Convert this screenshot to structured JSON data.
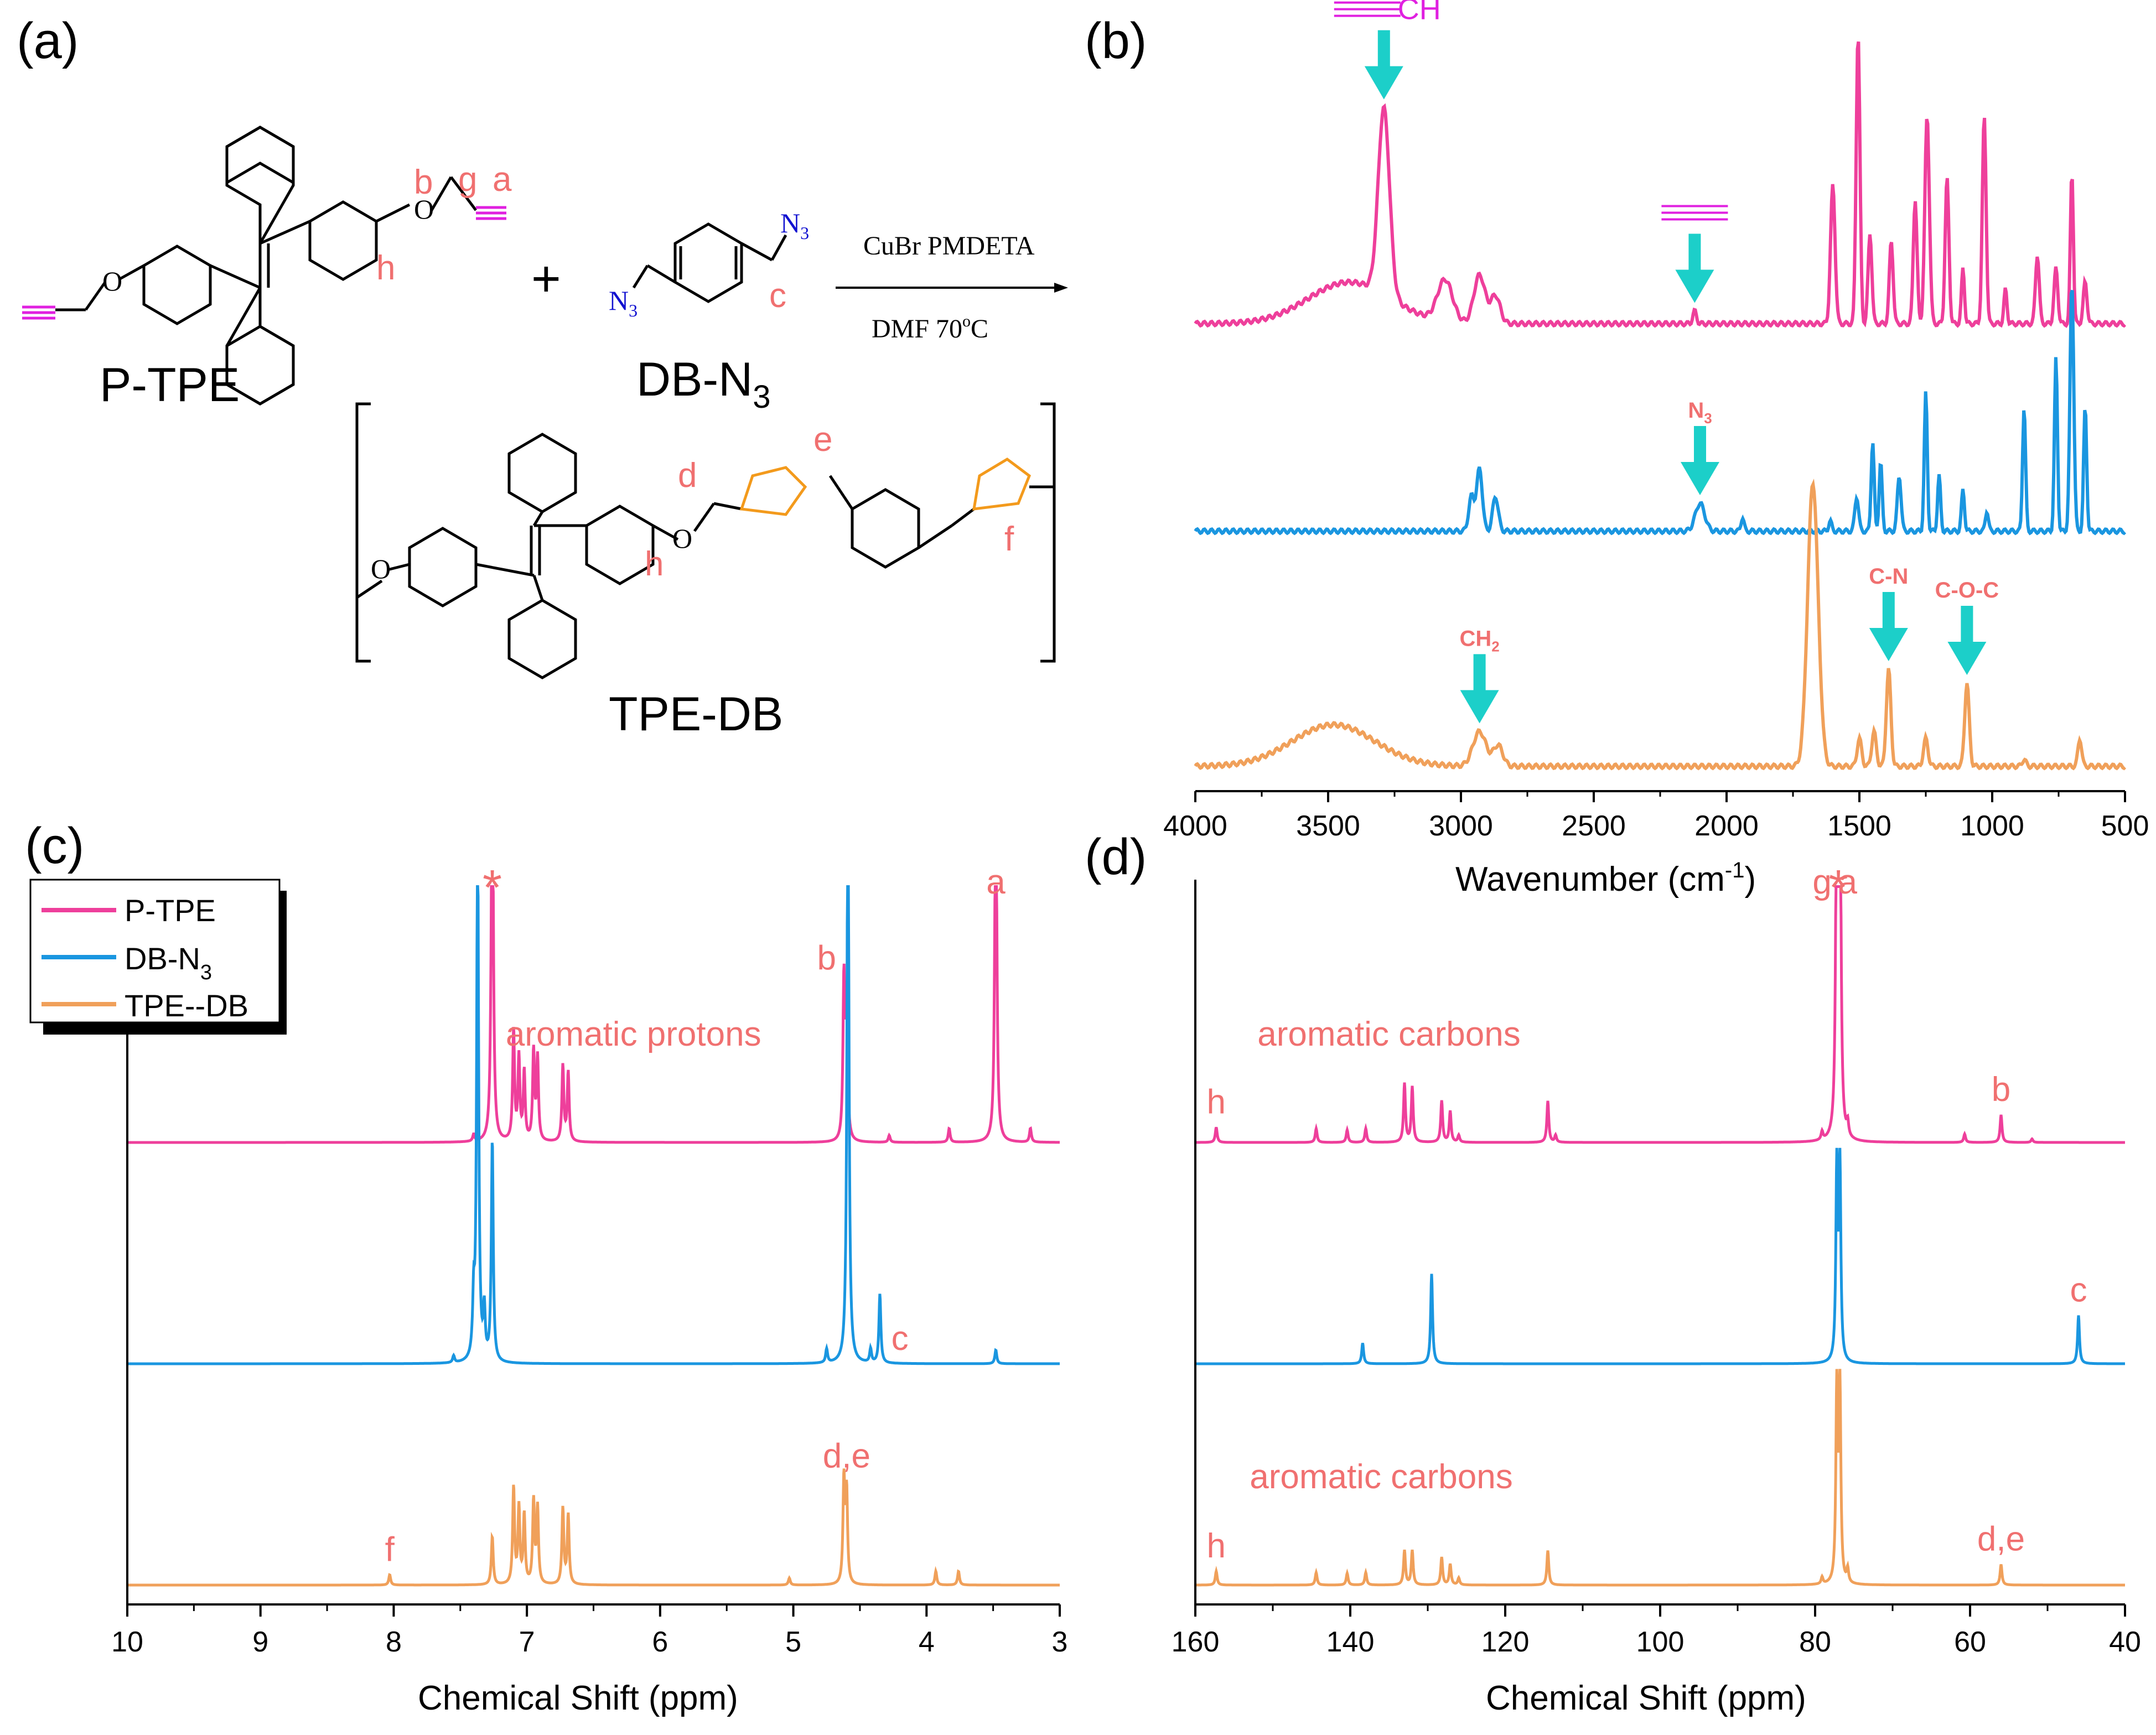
{
  "figure": {
    "panel_labels": [
      "(a)",
      "(b)",
      "(c)",
      "(d)"
    ]
  },
  "scheme": {
    "monomer1_name": "P-TPE",
    "monomer2_name_main": "DB-N",
    "monomer2_name_sub": "3",
    "polymer_name": "TPE-DB",
    "reaction_conditions_top": "CuBr  PMDETA",
    "reaction_conditions_bottom": "DMF  70",
    "reaction_temp_unit": "C",
    "reaction_temp_sup": "o",
    "plus": "+",
    "atom_O": "O",
    "atom_N": "N",
    "azide_N": "N",
    "azide_sub": "3",
    "site_labels": {
      "a": "a",
      "b": "b",
      "c": "c",
      "d": "d",
      "e": "e",
      "f": "f",
      "g": "g",
      "h": "h"
    }
  },
  "colors": {
    "p_tpe": "#ee3f9b",
    "db_n3": "#1a96e0",
    "tpe_db": "#f0a05a",
    "annotation": "#f07070",
    "arrow": "#1ccfc9",
    "alkyne": "#e020e0",
    "azide": "#1010d0",
    "triazole": "#f39a1c",
    "axis": "#000000"
  },
  "chart_data": [
    {
      "id": "b",
      "type": "line",
      "title": "",
      "xlabel_main": "Wavenumber (cm",
      "xlabel_sup": "-1",
      "xlabel_close": ")",
      "ylabel": "",
      "xlim": [
        4000,
        500
      ],
      "ylim": [
        0,
        1
      ],
      "xticks": [
        4000,
        3500,
        3000,
        2500,
        2000,
        1500,
        1000,
        500
      ],
      "xtick_labels": [
        "4000",
        "3500",
        "3000",
        "2500",
        "2000",
        "1500",
        "1000",
        "500"
      ],
      "series": [
        {
          "name": "P-TPE",
          "offset": 0.66,
          "baseline": 0.0,
          "peaks": [
            [
              3420,
              0.06,
              220
            ],
            [
              3290,
              0.27,
              30
            ],
            [
              3060,
              0.06,
              40
            ],
            [
              2930,
              0.07,
              30
            ],
            [
              2870,
              0.04,
              25
            ],
            [
              2120,
              0.018,
              10
            ],
            [
              1600,
              0.2,
              12
            ],
            [
              1505,
              0.42,
              10
            ],
            [
              1460,
              0.13,
              10
            ],
            [
              1380,
              0.12,
              10
            ],
            [
              1290,
              0.18,
              10
            ],
            [
              1245,
              0.3,
              12
            ],
            [
              1170,
              0.21,
              10
            ],
            [
              1110,
              0.08,
              8
            ],
            [
              1030,
              0.3,
              10
            ],
            [
              950,
              0.05,
              8
            ],
            [
              830,
              0.1,
              10
            ],
            [
              760,
              0.08,
              10
            ],
            [
              700,
              0.22,
              8
            ],
            [
              650,
              0.06,
              10
            ]
          ]
        },
        {
          "name": "DB-N3",
          "offset": 0.36,
          "baseline": 0.0,
          "peaks": [
            [
              2960,
              0.05,
              15
            ],
            [
              2930,
              0.09,
              15
            ],
            [
              2870,
              0.05,
              15
            ],
            [
              2100,
              0.04,
              25
            ],
            [
              1940,
              0.02,
              8
            ],
            [
              1610,
              0.015,
              8
            ],
            [
              1510,
              0.05,
              10
            ],
            [
              1450,
              0.13,
              8
            ],
            [
              1420,
              0.1,
              8
            ],
            [
              1350,
              0.08,
              10
            ],
            [
              1250,
              0.2,
              8
            ],
            [
              1200,
              0.08,
              8
            ],
            [
              1110,
              0.06,
              8
            ],
            [
              1020,
              0.03,
              8
            ],
            [
              880,
              0.18,
              8
            ],
            [
              760,
              0.25,
              8
            ],
            [
              700,
              0.36,
              10
            ],
            [
              650,
              0.18,
              8
            ]
          ]
        },
        {
          "name": "TPE--DB",
          "offset": 0.02,
          "baseline": 0.0,
          "peaks": [
            [
              3480,
              0.06,
              220
            ],
            [
              2930,
              0.05,
              35
            ],
            [
              2860,
              0.03,
              25
            ],
            [
              1675,
              0.41,
              28
            ],
            [
              1500,
              0.04,
              12
            ],
            [
              1445,
              0.05,
              12
            ],
            [
              1390,
              0.14,
              12
            ],
            [
              1250,
              0.04,
              12
            ],
            [
              1095,
              0.12,
              12
            ],
            [
              880,
              0.01,
              10
            ],
            [
              670,
              0.04,
              10
            ]
          ]
        }
      ],
      "annotations": [
        {
          "label": "CH",
          "prefix": "≡",
          "x": 3290,
          "series": "P-TPE",
          "kind": "alkyne"
        },
        {
          "label": "",
          "prefix": "≡",
          "x": 2120,
          "series": "P-TPE",
          "kind": "alkyne"
        },
        {
          "label": "N",
          "sub": "3",
          "x": 2100,
          "series": "DB-N3",
          "kind": "text"
        },
        {
          "label": "CH",
          "sub": "2",
          "x": 2930,
          "series": "TPE--DB",
          "kind": "text"
        },
        {
          "label": "C-N",
          "x": 1390,
          "series": "TPE--DB",
          "kind": "text"
        },
        {
          "label": "C-O-C",
          "x": 1095,
          "series": "TPE--DB",
          "kind": "text"
        }
      ]
    },
    {
      "id": "c",
      "type": "line",
      "title": "",
      "xlabel": "Chemical Shift (ppm)",
      "ylabel": "",
      "xlim": [
        10,
        3
      ],
      "ylim": [
        0,
        1
      ],
      "xticks": [
        10,
        9,
        8,
        7,
        6,
        5,
        4,
        3
      ],
      "xtick_labels": [
        "10",
        "9",
        "8",
        "7",
        "6",
        "5",
        "4",
        "3"
      ],
      "legend": {
        "placement": "top-left",
        "entries": [
          "P-TPE",
          "DB-N",
          "TPE--DB"
        ],
        "db_sub": "3"
      },
      "series": [
        {
          "name": "P-TPE",
          "offset": 0.66,
          "peaks": [
            [
              7.26,
              0.65
            ],
            [
              7.1,
              0.16
            ],
            [
              7.06,
              0.12
            ],
            [
              7.02,
              0.1
            ],
            [
              6.95,
              0.13
            ],
            [
              6.92,
              0.12
            ],
            [
              6.73,
              0.11
            ],
            [
              6.69,
              0.1
            ],
            [
              4.62,
              0.23
            ],
            [
              4.6,
              0.2
            ],
            [
              3.48,
              0.6
            ],
            [
              3.83,
              0.02
            ],
            [
              4.28,
              0.01
            ],
            [
              7.4,
              0.01
            ],
            [
              3.22,
              0.02
            ]
          ]
        },
        {
          "name": "DB-N3",
          "offset": 0.34,
          "peaks": [
            [
              7.37,
              0.8
            ],
            [
              7.4,
              0.08
            ],
            [
              7.32,
              0.07
            ],
            [
              7.26,
              0.32
            ],
            [
              4.59,
              0.9
            ],
            [
              4.35,
              0.1
            ],
            [
              4.75,
              0.02
            ],
            [
              4.42,
              0.02
            ],
            [
              3.48,
              0.02
            ],
            [
              7.55,
              0.01
            ]
          ]
        },
        {
          "name": "TPE--DB",
          "offset": 0.02,
          "peaks": [
            [
              8.03,
              0.015
            ],
            [
              7.26,
              0.07
            ],
            [
              7.1,
              0.14
            ],
            [
              7.06,
              0.11
            ],
            [
              7.02,
              0.1
            ],
            [
              6.95,
              0.12
            ],
            [
              6.92,
              0.11
            ],
            [
              6.73,
              0.11
            ],
            [
              6.69,
              0.1
            ],
            [
              4.62,
              0.15
            ],
            [
              4.6,
              0.13
            ],
            [
              5.03,
              0.01
            ],
            [
              3.93,
              0.02
            ],
            [
              3.76,
              0.02
            ]
          ]
        }
      ],
      "annotations": [
        {
          "label": "*",
          "x": 7.26,
          "kind": "star"
        },
        {
          "label": "aromatic protons",
          "x": 6.2,
          "series": "P-TPE"
        },
        {
          "label": "a",
          "x": 3.48,
          "series": "P-TPE"
        },
        {
          "label": "b",
          "x": 4.75,
          "series": "P-TPE"
        },
        {
          "label": "c",
          "x": 4.2,
          "series": "DB-N3"
        },
        {
          "label": "d,e",
          "x": 4.6,
          "series": "TPE--DB"
        },
        {
          "label": "f",
          "x": 8.03,
          "series": "TPE--DB"
        }
      ]
    },
    {
      "id": "d",
      "type": "line",
      "title": "",
      "xlabel": "Chemical Shift (ppm)",
      "ylabel": "",
      "xlim": [
        160,
        40
      ],
      "ylim": [
        0,
        1
      ],
      "xticks": [
        160,
        140,
        120,
        100,
        80,
        60,
        40
      ],
      "xtick_labels": [
        "160",
        "140",
        "120",
        "100",
        "80",
        "60",
        "40"
      ],
      "series": [
        {
          "name": "P-TPE",
          "offset": 0.66,
          "peaks": [
            [
              157.3,
              0.022
            ],
            [
              144.4,
              0.02
            ],
            [
              140.4,
              0.018
            ],
            [
              138.0,
              0.02
            ],
            [
              133.0,
              0.085
            ],
            [
              132.0,
              0.08
            ],
            [
              128.2,
              0.06
            ],
            [
              127.1,
              0.045
            ],
            [
              126.0,
              0.01
            ],
            [
              114.5,
              0.06
            ],
            [
              113.5,
              0.01
            ],
            [
              79.1,
              0.012
            ],
            [
              77.2,
              0.6
            ],
            [
              76.8,
              0.6
            ],
            [
              75.8,
              0.02
            ],
            [
              60.7,
              0.012
            ],
            [
              56.0,
              0.04
            ],
            [
              52.0,
              0.005
            ]
          ]
        },
        {
          "name": "DB-N3",
          "offset": 0.34,
          "peaks": [
            [
              138.4,
              0.03
            ],
            [
              129.5,
              0.13
            ],
            [
              77.2,
              0.28
            ],
            [
              76.8,
              0.28
            ],
            [
              46.0,
              0.07
            ]
          ]
        },
        {
          "name": "TPE--DB",
          "offset": 0.02,
          "peaks": [
            [
              157.3,
              0.02
            ],
            [
              144.4,
              0.018
            ],
            [
              140.4,
              0.017
            ],
            [
              138.0,
              0.018
            ],
            [
              133.0,
              0.05
            ],
            [
              132.0,
              0.05
            ],
            [
              128.2,
              0.04
            ],
            [
              127.1,
              0.03
            ],
            [
              126.0,
              0.01
            ],
            [
              114.5,
              0.05
            ],
            [
              79.1,
              0.01
            ],
            [
              77.2,
              0.28
            ],
            [
              76.8,
              0.28
            ],
            [
              75.8,
              0.02
            ],
            [
              56.0,
              0.03
            ]
          ]
        }
      ],
      "annotations": [
        {
          "label": "*",
          "x": 77.0,
          "kind": "star"
        },
        {
          "label": "aromatic carbons",
          "x": 135,
          "series": "P-TPE"
        },
        {
          "label": "h",
          "x": 157.3,
          "series": "P-TPE"
        },
        {
          "label": "g",
          "x": 79.1,
          "series": "P-TPE"
        },
        {
          "label": "a",
          "x": 75.8,
          "series": "P-TPE"
        },
        {
          "label": "b",
          "x": 56.0,
          "series": "P-TPE"
        },
        {
          "label": "c",
          "x": 46.0,
          "series": "DB-N3"
        },
        {
          "label": "h",
          "x": 157.3,
          "series": "TPE--DB"
        },
        {
          "label": "aromatic carbons",
          "x": 136,
          "series": "TPE--DB"
        },
        {
          "label": "d,e",
          "x": 56.0,
          "series": "TPE--DB"
        }
      ]
    }
  ]
}
